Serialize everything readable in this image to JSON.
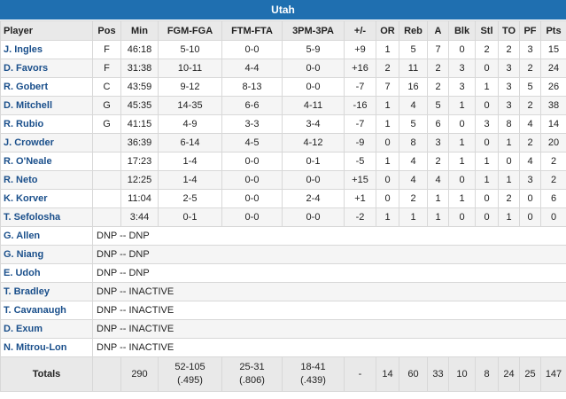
{
  "team": "Utah",
  "headers": [
    "Player",
    "Pos",
    "Min",
    "FGM-FGA",
    "FTM-FTA",
    "3PM-3PA",
    "+/-",
    "OR",
    "Reb",
    "A",
    "Blk",
    "Stl",
    "TO",
    "PF",
    "Pts"
  ],
  "players": [
    {
      "name": "J. Ingles",
      "pos": "F",
      "min": "46:18",
      "fg": "5-10",
      "ft": "0-0",
      "tp": "5-9",
      "pm": "+9",
      "or": "1",
      "reb": "5",
      "a": "7",
      "blk": "0",
      "stl": "2",
      "to": "2",
      "pf": "3",
      "pts": "15"
    },
    {
      "name": "D. Favors",
      "pos": "F",
      "min": "31:38",
      "fg": "10-11",
      "ft": "4-4",
      "tp": "0-0",
      "pm": "+16",
      "or": "2",
      "reb": "11",
      "a": "2",
      "blk": "3",
      "stl": "0",
      "to": "3",
      "pf": "2",
      "pts": "24"
    },
    {
      "name": "R. Gobert",
      "pos": "C",
      "min": "43:59",
      "fg": "9-12",
      "ft": "8-13",
      "tp": "0-0",
      "pm": "-7",
      "or": "7",
      "reb": "16",
      "a": "2",
      "blk": "3",
      "stl": "1",
      "to": "3",
      "pf": "5",
      "pts": "26"
    },
    {
      "name": "D. Mitchell",
      "pos": "G",
      "min": "45:35",
      "fg": "14-35",
      "ft": "6-6",
      "tp": "4-11",
      "pm": "-16",
      "or": "1",
      "reb": "4",
      "a": "5",
      "blk": "1",
      "stl": "0",
      "to": "3",
      "pf": "2",
      "pts": "38"
    },
    {
      "name": "R. Rubio",
      "pos": "G",
      "min": "41:15",
      "fg": "4-9",
      "ft": "3-3",
      "tp": "3-4",
      "pm": "-7",
      "or": "1",
      "reb": "5",
      "a": "6",
      "blk": "0",
      "stl": "3",
      "to": "8",
      "pf": "4",
      "pts": "14"
    },
    {
      "name": "J. Crowder",
      "pos": "",
      "min": "36:39",
      "fg": "6-14",
      "ft": "4-5",
      "tp": "4-12",
      "pm": "-9",
      "or": "0",
      "reb": "8",
      "a": "3",
      "blk": "1",
      "stl": "0",
      "to": "1",
      "pf": "2",
      "pts": "20"
    },
    {
      "name": "R. O'Neale",
      "pos": "",
      "min": "17:23",
      "fg": "1-4",
      "ft": "0-0",
      "tp": "0-1",
      "pm": "-5",
      "or": "1",
      "reb": "4",
      "a": "2",
      "blk": "1",
      "stl": "1",
      "to": "0",
      "pf": "4",
      "pts": "2"
    },
    {
      "name": "R. Neto",
      "pos": "",
      "min": "12:25",
      "fg": "1-4",
      "ft": "0-0",
      "tp": "0-0",
      "pm": "+15",
      "or": "0",
      "reb": "4",
      "a": "4",
      "blk": "0",
      "stl": "1",
      "to": "1",
      "pf": "3",
      "pts": "2"
    },
    {
      "name": "K. Korver",
      "pos": "",
      "min": "11:04",
      "fg": "2-5",
      "ft": "0-0",
      "tp": "2-4",
      "pm": "+1",
      "or": "0",
      "reb": "2",
      "a": "1",
      "blk": "1",
      "stl": "0",
      "to": "2",
      "pf": "0",
      "pts": "6"
    },
    {
      "name": "T. Sefolosha",
      "pos": "",
      "min": "3:44",
      "fg": "0-1",
      "ft": "0-0",
      "tp": "0-0",
      "pm": "-2",
      "or": "1",
      "reb": "1",
      "a": "1",
      "blk": "0",
      "stl": "0",
      "to": "1",
      "pf": "0",
      "pts": "0"
    }
  ],
  "dnp": [
    {
      "name": "G. Allen",
      "note": "DNP -- DNP"
    },
    {
      "name": "G. Niang",
      "note": "DNP -- DNP"
    },
    {
      "name": "E. Udoh",
      "note": "DNP -- DNP"
    },
    {
      "name": "T. Bradley",
      "note": "DNP -- INACTIVE"
    },
    {
      "name": "T. Cavanaugh",
      "note": "DNP -- INACTIVE"
    },
    {
      "name": "D. Exum",
      "note": "DNP -- INACTIVE"
    },
    {
      "name": "N. Mitrou-Lon",
      "note": "DNP -- INACTIVE"
    }
  ],
  "totals": {
    "label": "Totals",
    "pos": "",
    "min": "290",
    "fg": "52-105",
    "fg_pct": "(.495)",
    "ft": "25-31",
    "ft_pct": "(.806)",
    "tp": "18-41",
    "tp_pct": "(.439)",
    "pm": "-",
    "or": "14",
    "reb": "60",
    "a": "33",
    "blk": "10",
    "stl": "8",
    "to": "24",
    "pf": "25",
    "pts": "147"
  }
}
